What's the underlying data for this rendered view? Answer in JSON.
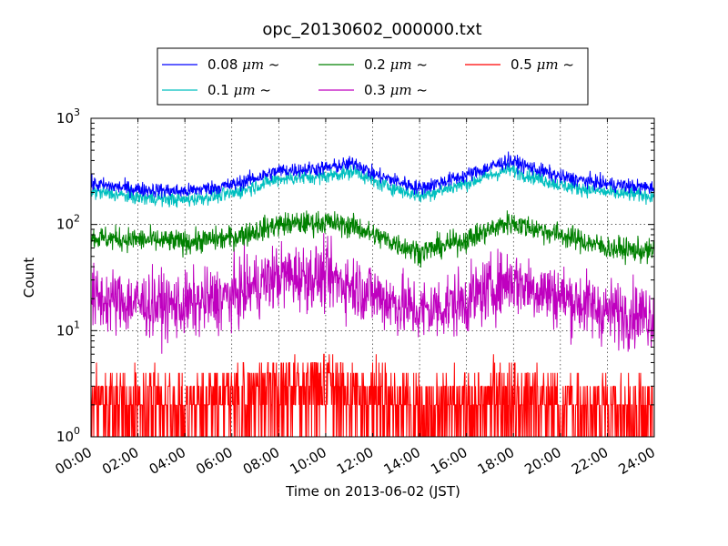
{
  "chart_data": {
    "type": "line",
    "title": "opc_20130602_000000.txt",
    "xlabel": "Time on 2013-06-02 (JST)",
    "ylabel": "Count",
    "xlim_hours": [
      0,
      24
    ],
    "x_ticks": [
      "00:00",
      "02:00",
      "04:00",
      "06:00",
      "08:00",
      "10:00",
      "12:00",
      "14:00",
      "16:00",
      "18:00",
      "20:00",
      "22:00",
      "24:00"
    ],
    "y_scale": "log",
    "ylim": [
      1,
      1000
    ],
    "y_ticks": [
      {
        "base": "10",
        "exp": "0",
        "value": 1
      },
      {
        "base": "10",
        "exp": "1",
        "value": 10
      },
      {
        "base": "10",
        "exp": "2",
        "value": 100
      },
      {
        "base": "10",
        "exp": "3",
        "value": 1000
      }
    ],
    "grid": true,
    "legend": {
      "position": "top",
      "columns": 3,
      "entries": [
        {
          "size": "0.08",
          "unit": "μm",
          "suffix": "~",
          "color": "#0000ff"
        },
        {
          "size": "0.1",
          "unit": "μm",
          "suffix": "~",
          "color": "#00bfbf"
        },
        {
          "size": "0.2",
          "unit": "μm",
          "suffix": "~",
          "color": "#008000"
        },
        {
          "size": "0.3",
          "unit": "μm",
          "suffix": "~",
          "color": "#bf00bf"
        },
        {
          "size": "0.5",
          "unit": "μm",
          "suffix": "~",
          "color": "#ff0000"
        }
      ]
    },
    "x": [
      0,
      2,
      4,
      6,
      8,
      10,
      11.3,
      12,
      14,
      16,
      17.8,
      20,
      22,
      24
    ],
    "series": [
      {
        "name": "0.08 μm ~",
        "color": "#0000ff",
        "values": [
          240,
          215,
          205,
          235,
          320,
          340,
          380,
          300,
          220,
          290,
          400,
          280,
          240,
          220
        ],
        "noise": 0.05
      },
      {
        "name": "0.1 μm ~",
        "color": "#00bfbf",
        "values": [
          205,
          180,
          170,
          195,
          270,
          285,
          320,
          255,
          185,
          245,
          330,
          235,
          200,
          185
        ],
        "noise": 0.05
      },
      {
        "name": "0.2 μm ~",
        "color": "#008000",
        "values": [
          75,
          72,
          68,
          75,
          100,
          105,
          95,
          80,
          55,
          72,
          105,
          80,
          60,
          55
        ],
        "noise": 0.08
      },
      {
        "name": "0.3 μm ~",
        "color": "#bf00bf",
        "values": [
          20,
          18,
          17,
          21,
          33,
          32,
          26,
          22,
          15,
          19,
          30,
          21,
          15,
          14
        ],
        "noise": 0.22
      },
      {
        "name": "0.5 μm ~",
        "color": "#ff0000",
        "values": [
          2,
          2,
          1.8,
          2.2,
          3,
          3,
          2.6,
          2.3,
          1.8,
          2,
          2.6,
          2,
          1.8,
          1.8
        ],
        "noise": 0.45,
        "discrete": true
      }
    ]
  }
}
